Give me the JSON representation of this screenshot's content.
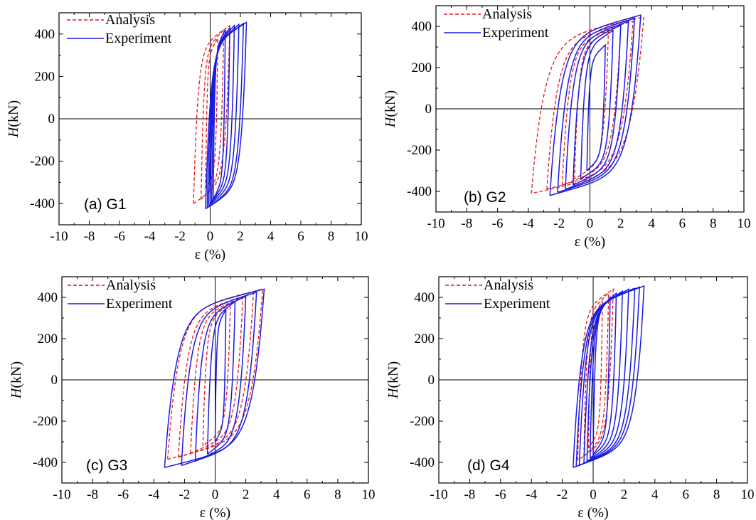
{
  "colors": {
    "analysis": "#e8141b",
    "experiment": "#1a1ae0",
    "axis": "#000000"
  },
  "chart_data": [
    {
      "type": "line",
      "panel_label": "(a) G1",
      "xlabel": "ε (%)",
      "ylabel_italic": "H",
      "ylabel_unit": "(kN)",
      "xlim": [
        -10,
        10
      ],
      "ylim": [
        -500,
        500
      ],
      "xticks": [
        "-10",
        "-8",
        "-6",
        "-4",
        "-2",
        "0",
        "2",
        "4",
        "6",
        "8",
        "10"
      ],
      "yticks": [
        "400",
        "200",
        "0",
        "-200",
        "-400"
      ],
      "legend": [
        "Analysis",
        "Experiment"
      ],
      "series": [
        {
          "name": "Analysis",
          "style": "dashed",
          "loops": [
            {
              "min": -1.1,
              "max": 1.3,
              "fmin": -400,
              "fmax": 440
            },
            {
              "min": -0.6,
              "max": 0.9,
              "fmin": -380,
              "fmax": 420
            },
            {
              "min": -0.3,
              "max": 0.5,
              "fmin": -330,
              "fmax": 380
            }
          ]
        },
        {
          "name": "Experiment",
          "style": "solid",
          "loops": [
            {
              "min": -0.3,
              "max": 2.4,
              "fmin": -425,
              "fmax": 455
            },
            {
              "min": -0.2,
              "max": 2.2,
              "fmin": -420,
              "fmax": 450
            },
            {
              "min": -0.1,
              "max": 1.9,
              "fmin": -410,
              "fmax": 445
            },
            {
              "min": 0.0,
              "max": 1.6,
              "fmin": -400,
              "fmax": 440
            },
            {
              "min": 0.1,
              "max": 1.3,
              "fmin": -390,
              "fmax": 430
            },
            {
              "min": 0.2,
              "max": 1.0,
              "fmin": -380,
              "fmax": 420
            }
          ]
        }
      ]
    },
    {
      "type": "line",
      "panel_label": "(b) G2",
      "xlabel": "ε (%)",
      "ylabel_italic": "H",
      "ylabel_unit": "(kN)",
      "xlim": [
        -10,
        10
      ],
      "ylim": [
        -500,
        500
      ],
      "xticks": [
        "-10",
        "-8",
        "-6",
        "-4",
        "-2",
        "0",
        "2",
        "4",
        "6",
        "8",
        "10"
      ],
      "yticks": [
        "400",
        "200",
        "0",
        "-200",
        "-400"
      ],
      "legend": [
        "Analysis",
        "Experiment"
      ],
      "series": [
        {
          "name": "Analysis",
          "style": "dashed",
          "loops": [
            {
              "min": -3.8,
              "max": 3.5,
              "fmin": -410,
              "fmax": 445
            },
            {
              "min": -2.8,
              "max": 2.8,
              "fmin": -390,
              "fmax": 425
            },
            {
              "min": -1.8,
              "max": 2.0,
              "fmin": -370,
              "fmax": 405
            },
            {
              "min": -1.0,
              "max": 1.2,
              "fmin": -340,
              "fmax": 380
            }
          ]
        },
        {
          "name": "Experiment",
          "style": "solid",
          "loops": [
            {
              "min": -2.6,
              "max": 3.3,
              "fmin": -420,
              "fmax": 455
            },
            {
              "min": -2.1,
              "max": 2.9,
              "fmin": -405,
              "fmax": 440
            },
            {
              "min": -1.6,
              "max": 2.5,
              "fmin": -390,
              "fmax": 425
            },
            {
              "min": -1.1,
              "max": 2.0,
              "fmin": -370,
              "fmax": 405
            },
            {
              "min": -0.6,
              "max": 1.5,
              "fmin": -340,
              "fmax": 380
            },
            {
              "min": -0.2,
              "max": 1.0,
              "fmin": -300,
              "fmax": 310
            }
          ]
        }
      ]
    },
    {
      "type": "line",
      "panel_label": "(c) G3",
      "xlabel": "ε (%)",
      "ylabel_italic": "H",
      "ylabel_unit": "(kN)",
      "xlim": [
        -10,
        10
      ],
      "ylim": [
        -500,
        500
      ],
      "xticks": [
        "-10",
        "-8",
        "-6",
        "-4",
        "-2",
        "0",
        "2",
        "4",
        "6",
        "8",
        "10"
      ],
      "yticks": [
        "400",
        "200",
        "0",
        "-200",
        "-400"
      ],
      "legend": [
        "Analysis",
        "Experiment"
      ],
      "series": [
        {
          "name": "Analysis",
          "style": "dashed",
          "loops": [
            {
              "min": -3.1,
              "max": 3.1,
              "fmin": -385,
              "fmax": 440
            },
            {
              "min": -2.4,
              "max": 2.5,
              "fmin": -375,
              "fmax": 420
            },
            {
              "min": -1.6,
              "max": 1.8,
              "fmin": -355,
              "fmax": 400
            },
            {
              "min": -0.8,
              "max": 1.0,
              "fmin": -320,
              "fmax": 370
            }
          ]
        },
        {
          "name": "Experiment",
          "style": "solid",
          "loops": [
            {
              "min": -3.3,
              "max": 3.2,
              "fmin": -425,
              "fmax": 440
            },
            {
              "min": -2.2,
              "max": 2.7,
              "fmin": -415,
              "fmax": 425
            },
            {
              "min": -1.3,
              "max": 2.0,
              "fmin": -395,
              "fmax": 405
            },
            {
              "min": -0.5,
              "max": 1.3,
              "fmin": -360,
              "fmax": 380
            },
            {
              "min": 0.0,
              "max": 0.7,
              "fmin": -300,
              "fmax": 340
            }
          ]
        }
      ]
    },
    {
      "type": "line",
      "panel_label": "(d) G4",
      "xlabel": "ε (%)",
      "ylabel_italic": "H",
      "ylabel_unit": "(kN)",
      "xlim": [
        -10,
        10
      ],
      "ylim": [
        -500,
        500
      ],
      "xticks": [
        "-10",
        "-8",
        "-6",
        "-4",
        "-2",
        "0",
        "2",
        "4",
        "6",
        "8",
        "10"
      ],
      "yticks": [
        "400",
        "200",
        "0",
        "-200",
        "-400"
      ],
      "legend": [
        "Analysis",
        "Experiment"
      ],
      "series": [
        {
          "name": "Analysis",
          "style": "dashed",
          "loops": [
            {
              "min": -1.0,
              "max": 1.3,
              "fmin": -390,
              "fmax": 440
            },
            {
              "min": -0.6,
              "max": 1.0,
              "fmin": -370,
              "fmax": 420
            },
            {
              "min": -0.3,
              "max": 0.6,
              "fmin": -330,
              "fmax": 380
            }
          ]
        },
        {
          "name": "Experiment",
          "style": "solid",
          "loops": [
            {
              "min": -1.3,
              "max": 3.3,
              "fmin": -425,
              "fmax": 455
            },
            {
              "min": -1.1,
              "max": 3.0,
              "fmin": -420,
              "fmax": 450
            },
            {
              "min": -0.9,
              "max": 2.7,
              "fmin": -415,
              "fmax": 445
            },
            {
              "min": -0.6,
              "max": 2.3,
              "fmin": -405,
              "fmax": 440
            },
            {
              "min": -0.4,
              "max": 1.9,
              "fmin": -395,
              "fmax": 430
            },
            {
              "min": -0.2,
              "max": 1.5,
              "fmin": -380,
              "fmax": 420
            },
            {
              "min": 0.0,
              "max": 1.1,
              "fmin": -360,
              "fmax": 400
            }
          ]
        }
      ]
    }
  ]
}
